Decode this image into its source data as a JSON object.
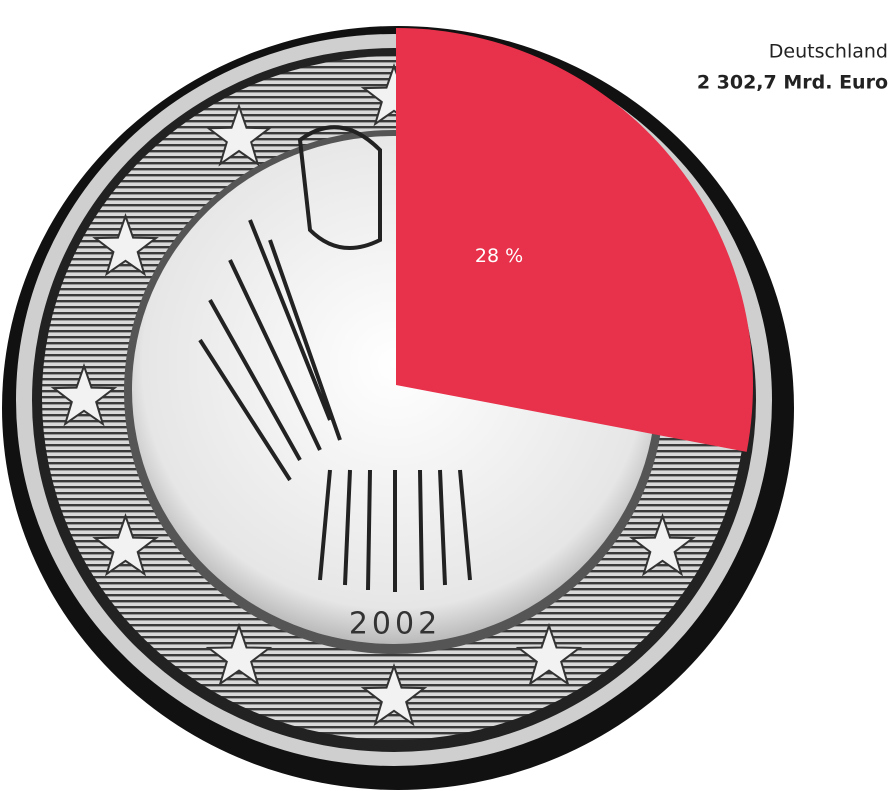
{
  "chart_data": {
    "type": "pie",
    "title": "Deutschland",
    "subtitle": "2 302,7 Mrd. Euro",
    "values": [
      28
    ],
    "value_labels": [
      "28 %"
    ],
    "color": "#e8314a",
    "annotations": [
      "2002"
    ]
  }
}
